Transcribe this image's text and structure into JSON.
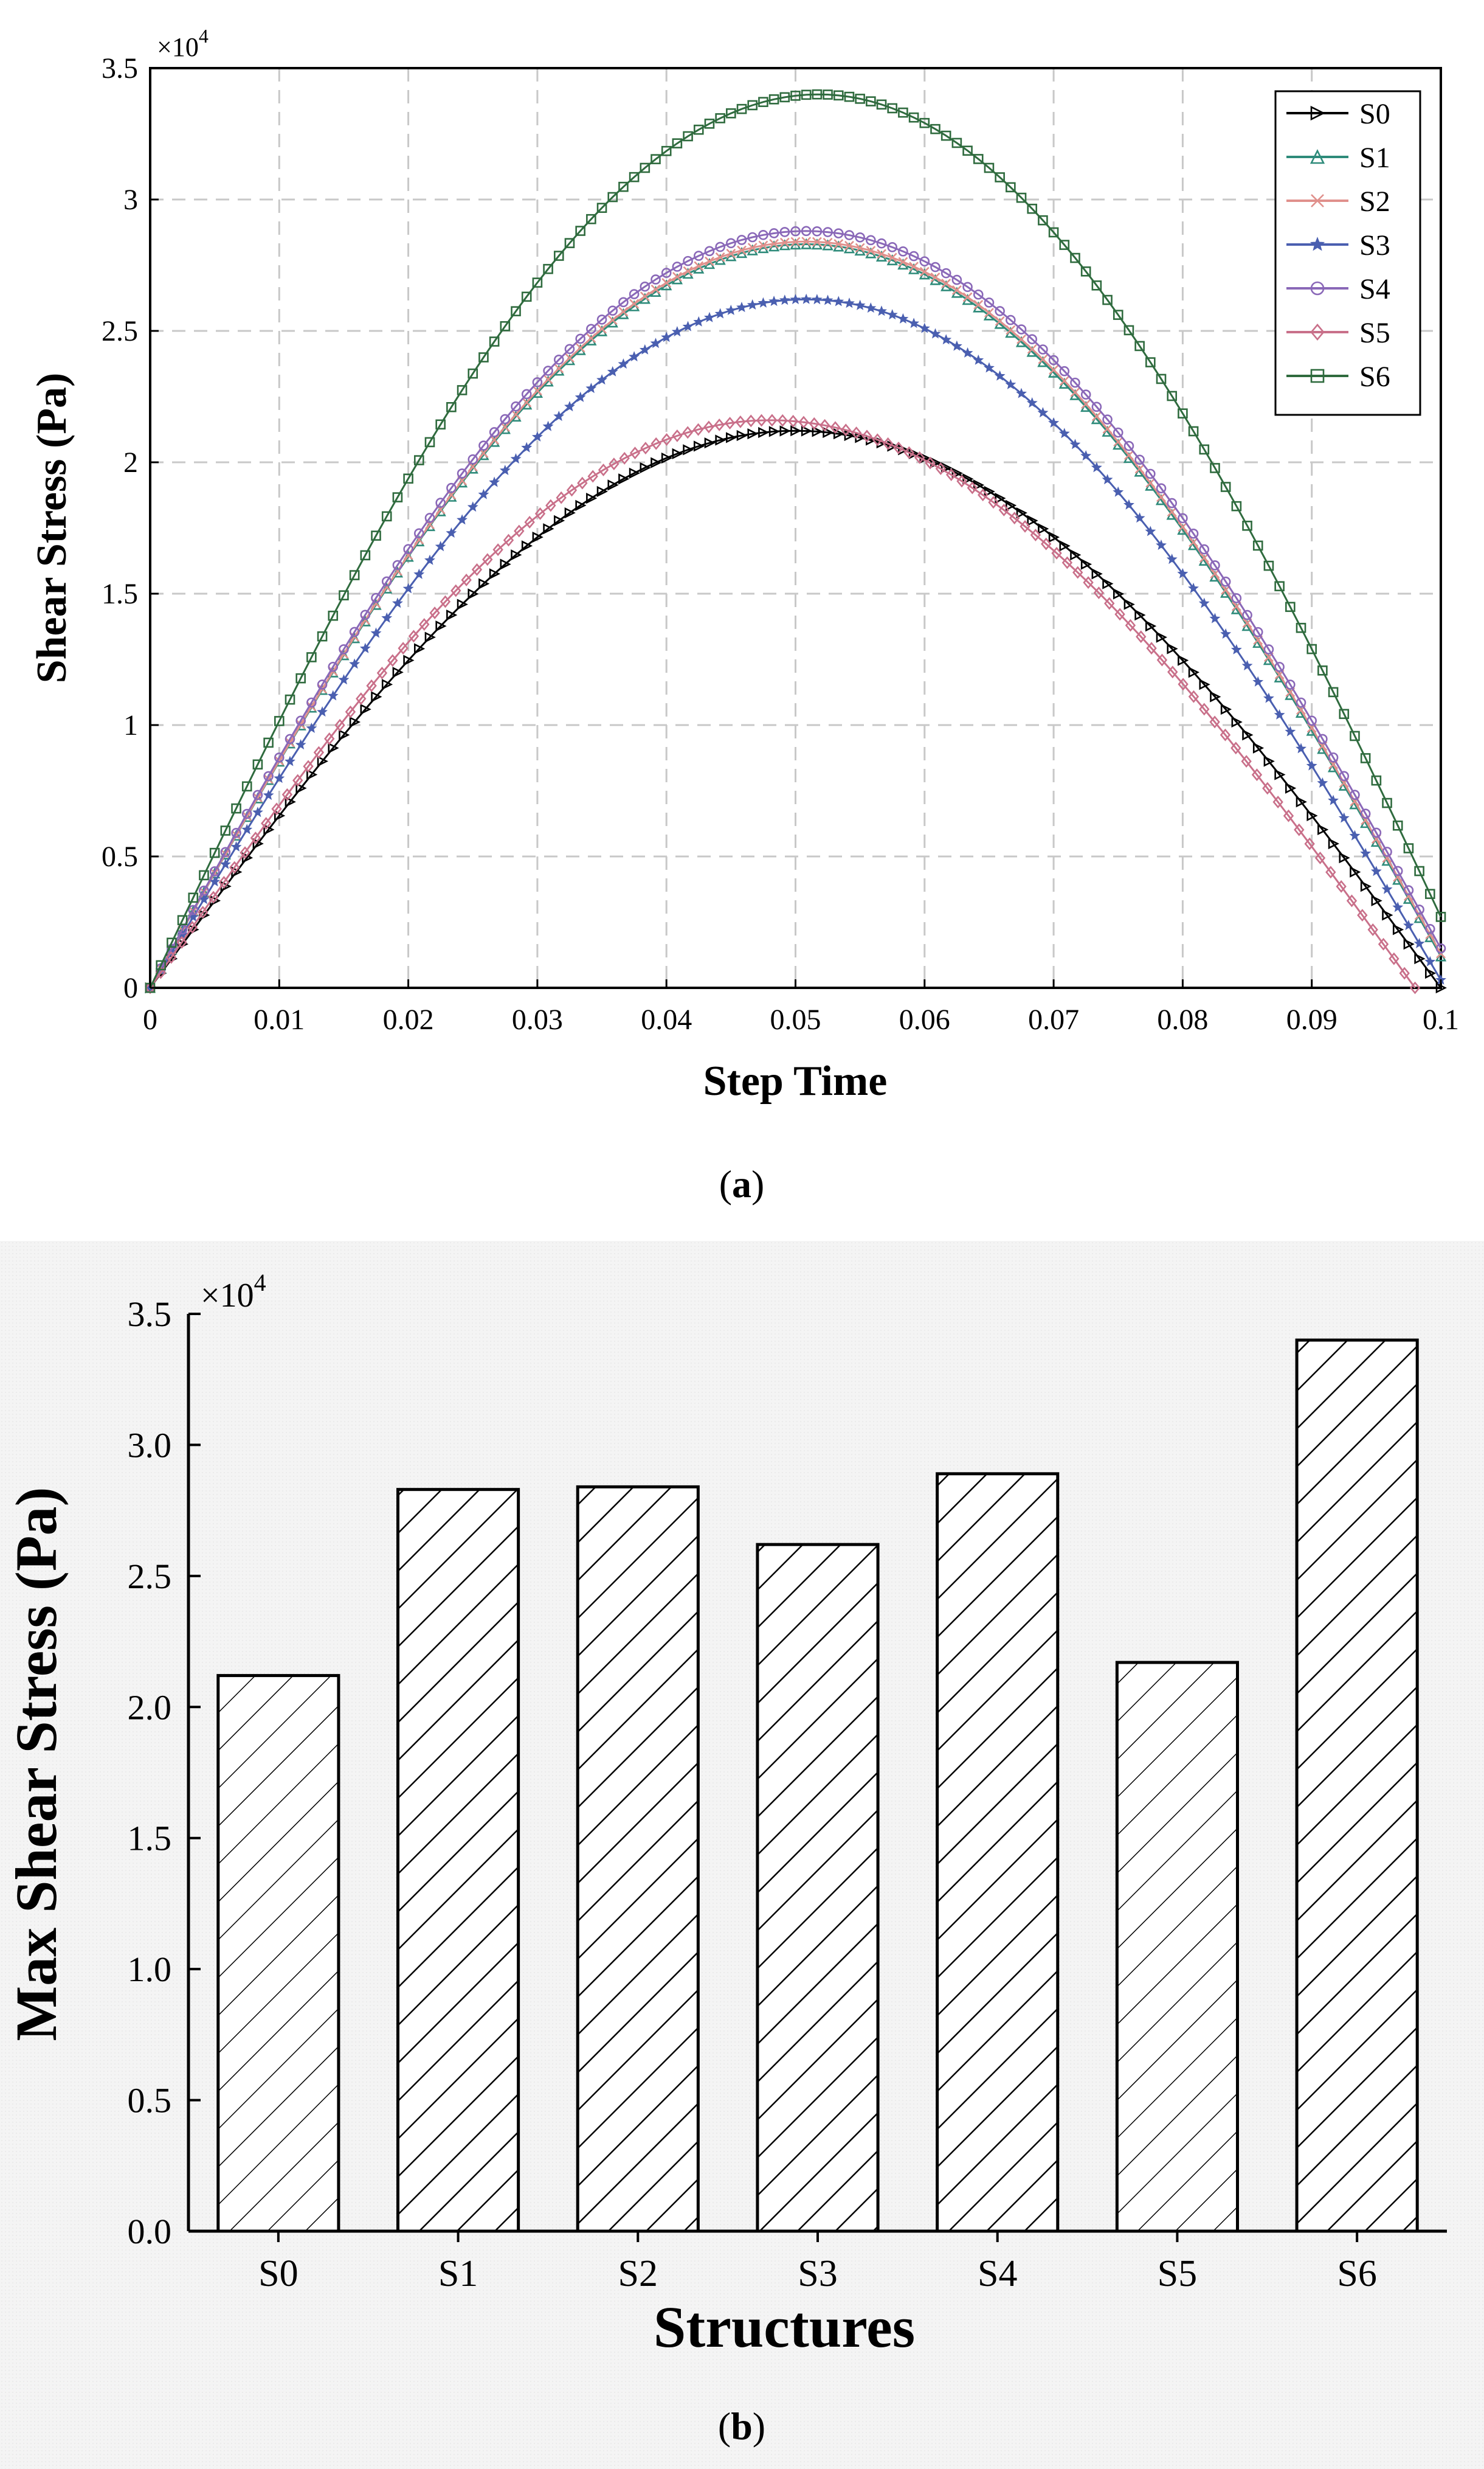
{
  "chart_data": [
    {
      "type": "line",
      "panel_label": "a",
      "xlabel": "Step Time",
      "ylabel": "Shear Stress (Pa)",
      "y_multiplier": "×10",
      "y_multiplier_exp": "4",
      "xlim": [
        0,
        0.1
      ],
      "ylim": [
        0,
        35000
      ],
      "grid": true,
      "legend_position": "top-right",
      "x_ticks": [
        0,
        0.01,
        0.02,
        0.03,
        0.04,
        0.05,
        0.06,
        0.07,
        0.08,
        0.09,
        0.1
      ],
      "x_tick_labels": [
        "0",
        "0.01",
        "0.02",
        "0.03",
        "0.04",
        "0.05",
        "0.06",
        "0.07",
        "0.08",
        "0.09",
        "0.1"
      ],
      "y_ticks": [
        0,
        5000,
        10000,
        15000,
        20000,
        25000,
        30000,
        35000
      ],
      "y_tick_labels": [
        "0",
        "0.5",
        "1",
        "1.5",
        "2",
        "2.5",
        "3",
        "3.5"
      ],
      "series": [
        {
          "name": "S0",
          "marker": "triangle-right",
          "color": "#000000",
          "peak": 21200,
          "peak_x": 0.05,
          "end_x": 0.1,
          "end_y": 0
        },
        {
          "name": "S1",
          "marker": "triangle-up",
          "color": "#2e8b7a",
          "peak": 28300,
          "peak_x": 0.0508,
          "end_x": 0.1,
          "end_y": 1200
        },
        {
          "name": "S2",
          "marker": "x",
          "color": "#e0908c",
          "peak": 28400,
          "peak_x": 0.0508,
          "end_x": 0.1,
          "end_y": 1300
        },
        {
          "name": "S3",
          "marker": "star",
          "color": "#4a5fb0",
          "peak": 26200,
          "peak_x": 0.0508,
          "end_x": 0.1,
          "end_y": 300
        },
        {
          "name": "S4",
          "marker": "circle",
          "color": "#8a68b8",
          "peak": 28800,
          "peak_x": 0.0508,
          "end_x": 0.1,
          "end_y": 1500
        },
        {
          "name": "S5",
          "marker": "diamond",
          "color": "#c9708a",
          "peak": 21600,
          "peak_x": 0.048,
          "end_x": 0.098,
          "end_y": 0
        },
        {
          "name": "S6",
          "marker": "square",
          "color": "#2f6b3e",
          "peak": 34000,
          "peak_x": 0.0518,
          "end_x": 0.1,
          "end_y": 2700
        }
      ]
    },
    {
      "type": "bar",
      "panel_label": "b",
      "xlabel": "Structures",
      "ylabel": "Max Shear Stress (Pa)",
      "y_multiplier": "×10",
      "y_multiplier_exp": "4",
      "ylim": [
        0,
        35000
      ],
      "y_ticks": [
        0,
        5000,
        10000,
        15000,
        20000,
        25000,
        30000,
        35000
      ],
      "y_tick_labels": [
        "0.0",
        "0.5",
        "1.0",
        "1.5",
        "2.0",
        "2.5",
        "3.0",
        "3.5"
      ],
      "categories": [
        "S0",
        "S1",
        "S2",
        "S3",
        "S4",
        "S5",
        "S6"
      ],
      "values": [
        21200,
        28300,
        28400,
        26200,
        28900,
        21700,
        34000
      ],
      "fill": "diagonal-hatch",
      "grid": false
    }
  ],
  "captions": {
    "a_open": "(",
    "a_letter": "a",
    "a_close": ")",
    "b_open": "(",
    "b_letter": "b",
    "b_close": ")"
  }
}
